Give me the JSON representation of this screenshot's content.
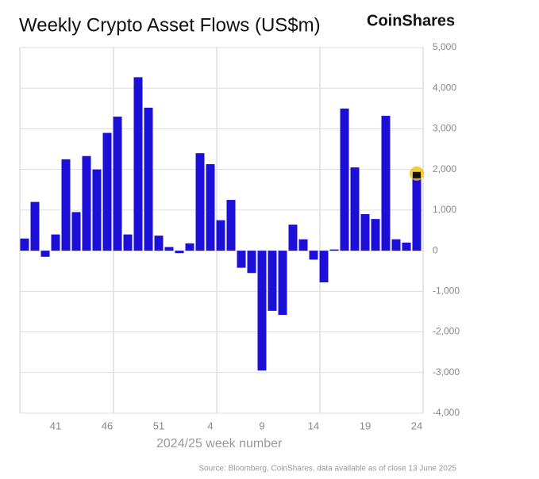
{
  "chart_data": {
    "type": "bar",
    "title": "Weekly Crypto Asset Flows (US$m)",
    "brand": "CoinShares",
    "x_label": "2024/25 week number",
    "source": "Source: Bloomberg, CoinShares, data available as of close 13 June 2025",
    "categories": [
      null,
      null,
      null,
      "41",
      null,
      null,
      null,
      null,
      "46",
      null,
      null,
      null,
      null,
      "51",
      null,
      null,
      null,
      null,
      "4",
      null,
      null,
      null,
      null,
      "9",
      null,
      null,
      null,
      null,
      "14",
      null,
      null,
      null,
      null,
      "19",
      null,
      null,
      null,
      null,
      "24"
    ],
    "values": [
      300,
      1200,
      -150,
      400,
      2250,
      950,
      2330,
      2000,
      2900,
      3300,
      400,
      4270,
      3520,
      370,
      90,
      -60,
      180,
      2400,
      2130,
      750,
      1250,
      -420,
      -550,
      -2950,
      -1480,
      -1580,
      640,
      280,
      -220,
      -780,
      30,
      3500,
      2050,
      900,
      780,
      3320,
      280,
      200,
      1900
    ],
    "color": "#1c0fd8",
    "ylim": [
      -4000,
      5000
    ],
    "yticks": [
      {
        "value": -4000,
        "label": "-4,000"
      },
      {
        "value": -3000,
        "label": "-3,000"
      },
      {
        "value": -2000,
        "label": "-2,000"
      },
      {
        "value": -1000,
        "label": "-1,000"
      },
      0,
      {
        "value": 1000,
        "label": "1,000"
      },
      {
        "value": 2000,
        "label": "2,000"
      },
      {
        "value": 3000,
        "label": "3,000"
      },
      {
        "value": 4000,
        "label": "4,000"
      },
      {
        "value": 5000,
        "label": "5,000"
      }
    ],
    "grid": true
  }
}
